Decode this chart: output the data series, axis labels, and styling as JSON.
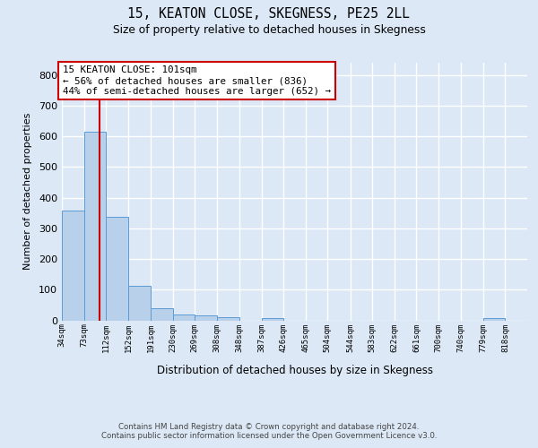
{
  "title": "15, KEATON CLOSE, SKEGNESS, PE25 2LL",
  "subtitle": "Size of property relative to detached houses in Skegness",
  "xlabel": "Distribution of detached houses by size in Skegness",
  "ylabel": "Number of detached properties",
  "bin_labels": [
    "34sqm",
    "73sqm",
    "112sqm",
    "152sqm",
    "191sqm",
    "230sqm",
    "269sqm",
    "308sqm",
    "348sqm",
    "387sqm",
    "426sqm",
    "465sqm",
    "504sqm",
    "544sqm",
    "583sqm",
    "622sqm",
    "661sqm",
    "700sqm",
    "740sqm",
    "779sqm",
    "818sqm"
  ],
  "bin_edges": [
    34,
    73,
    112,
    152,
    191,
    230,
    269,
    308,
    348,
    387,
    426,
    465,
    504,
    544,
    583,
    622,
    661,
    700,
    740,
    779,
    818,
    857
  ],
  "bar_values": [
    358,
    614,
    338,
    113,
    38,
    20,
    15,
    10,
    0,
    8,
    0,
    0,
    0,
    0,
    0,
    0,
    0,
    0,
    0,
    8,
    0
  ],
  "bar_color": "#b8d0ea",
  "bar_edge_color": "#5b9bd5",
  "property_size": 101,
  "vline_color": "#cc0000",
  "annotation_line1": "15 KEATON CLOSE: 101sqm",
  "annotation_line2": "← 56% of detached houses are smaller (836)",
  "annotation_line3": "44% of semi-detached houses are larger (652) →",
  "annotation_box_color": "#ffffff",
  "annotation_box_edge": "#cc0000",
  "fig_background": "#dce8f5",
  "plot_background": "#dce8f5",
  "grid_color": "#ffffff",
  "ylim": [
    0,
    840
  ],
  "yticks": [
    0,
    100,
    200,
    300,
    400,
    500,
    600,
    700,
    800
  ],
  "footer_text": "Contains HM Land Registry data © Crown copyright and database right 2024.\nContains public sector information licensed under the Open Government Licence v3.0."
}
